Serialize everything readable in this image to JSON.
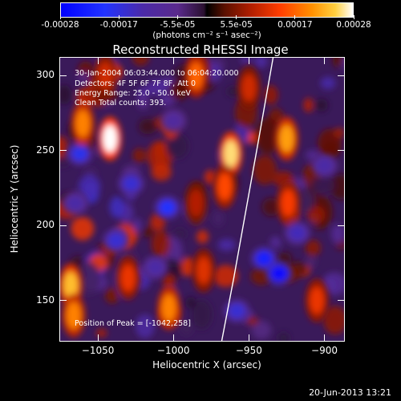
{
  "chart_data": {
    "type": "heatmap",
    "title": "Reconstructed RHESSI Image",
    "xlabel": "Heliocentric X (arcsec)",
    "ylabel": "Heliocentric Y (arcsec)",
    "xlim": [
      -1075,
      -887
    ],
    "ylim": [
      123,
      312
    ],
    "x_ticks": [
      -1050,
      -1000,
      -950,
      -900
    ],
    "y_ticks": [
      150,
      200,
      250,
      300
    ],
    "colorbar": {
      "min": -0.00028,
      "max": 0.00028,
      "ticks": [
        "-0.00028",
        "-0.00017",
        "-5.5e-05",
        "5.5e-05",
        "0.00017",
        "0.00028"
      ],
      "units": "(photons cm⁻² s⁻¹ asec⁻²)"
    },
    "annotations": [
      "30-Jan-2004 06:03:44.000 to 06:04:20.000",
      "Detectors: 4F 5F 6F 7F 8F, Att 0",
      "Energy Range: 25.0 - 50.0 keV",
      "Clean      Total counts: 393.",
      "Position of Peak = [-1042,258]"
    ],
    "peak": {
      "x": -1042,
      "y": 258
    },
    "limb_curve": [
      {
        "x": -968,
        "y": 123
      },
      {
        "x": -960,
        "y": 165
      },
      {
        "x": -952,
        "y": 210
      },
      {
        "x": -944,
        "y": 255
      },
      {
        "x": -934,
        "y": 312
      }
    ],
    "hot_spots": [
      {
        "x": -1042,
        "y": 258,
        "v": 0.00028
      },
      {
        "x": -1060,
        "y": 268,
        "v": 0.0002
      },
      {
        "x": -962,
        "y": 248,
        "v": 0.00026
      },
      {
        "x": -966,
        "y": 226,
        "v": 0.00016
      },
      {
        "x": -1068,
        "y": 160,
        "v": 0.00024
      },
      {
        "x": -1066,
        "y": 140,
        "v": 0.0002
      },
      {
        "x": -1030,
        "y": 165,
        "v": 0.00014
      },
      {
        "x": -1003,
        "y": 145,
        "v": 0.0002
      },
      {
        "x": -985,
        "y": 300,
        "v": 0.00018
      },
      {
        "x": -980,
        "y": 170,
        "v": 0.00013
      },
      {
        "x": -1045,
        "y": 300,
        "v": 0.00012
      },
      {
        "x": -925,
        "y": 258,
        "v": 0.00022
      },
      {
        "x": -924,
        "y": 215,
        "v": 0.00015
      },
      {
        "x": -905,
        "y": 150,
        "v": 0.00014
      },
      {
        "x": -985,
        "y": 215,
        "v": 0.0001
      },
      {
        "x": -950,
        "y": 292,
        "v": 0.00012
      }
    ],
    "cold_spots": [
      {
        "x": -1062,
        "y": 248,
        "v": -0.00018
      },
      {
        "x": -1028,
        "y": 228,
        "v": -0.00016
      },
      {
        "x": -1004,
        "y": 212,
        "v": -0.0002
      },
      {
        "x": -1038,
        "y": 190,
        "v": -0.00016
      },
      {
        "x": -1012,
        "y": 172,
        "v": -0.00012
      },
      {
        "x": -940,
        "y": 178,
        "v": -0.00022
      },
      {
        "x": -930,
        "y": 168,
        "v": -0.00026
      },
      {
        "x": -958,
        "y": 143,
        "v": -0.00016
      },
      {
        "x": -918,
        "y": 195,
        "v": -0.00014
      },
      {
        "x": -1065,
        "y": 215,
        "v": -0.00012
      },
      {
        "x": -1000,
        "y": 270,
        "v": -0.0001
      },
      {
        "x": -900,
        "y": 240,
        "v": -0.00012
      }
    ]
  },
  "footer": {
    "date": "20-Jun-2013 13:21"
  },
  "colors": {
    "background": "#000000",
    "foreground": "#ffffff",
    "limb": "#ffffff"
  }
}
